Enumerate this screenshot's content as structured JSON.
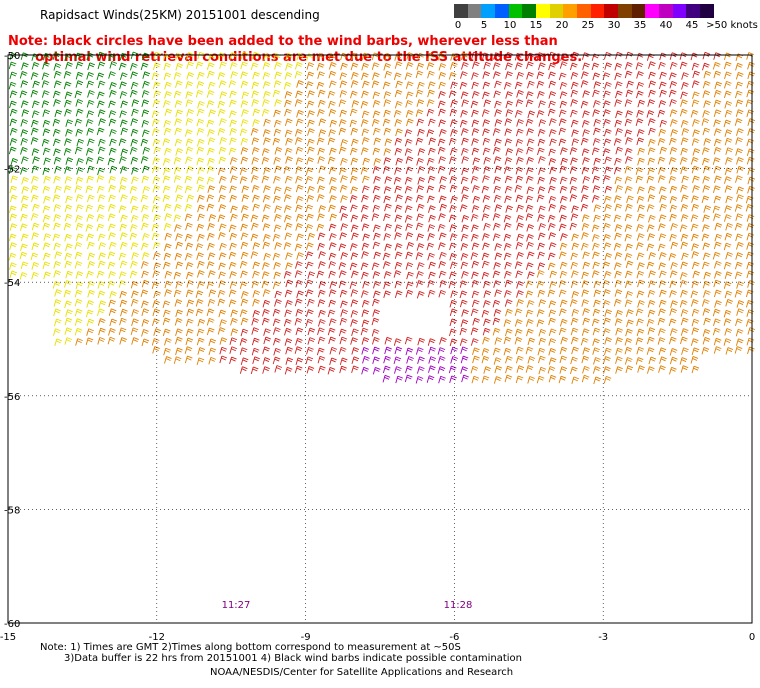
{
  "title": "Rapidsact Winds(25KM) 20151001 descending",
  "note_lines": [
    "Note: black circles have been added to the wind barbs, wherever less than",
    "      optimal wind retrieval conditions are met due to the ISS attitude changes."
  ],
  "colorbar": {
    "colors": [
      "#404040",
      "#808080",
      "#00a0ff",
      "#0060ff",
      "#00c000",
      "#008000",
      "#ffff00",
      "#e0d000",
      "#ffa000",
      "#ff6000",
      "#ff2000",
      "#c00000",
      "#804000",
      "#602000",
      "#ff00ff",
      "#c000c0",
      "#8000ff",
      "#400080",
      "#200040"
    ],
    "labels": [
      "0",
      "5",
      "10",
      "15",
      "20",
      "25",
      "30",
      "35",
      "40",
      "45",
      ">50 knots"
    ]
  },
  "axes": {
    "lat_labels": [
      "-50",
      "-52",
      "-54",
      "-56",
      "-58",
      "-60"
    ],
    "lon_labels": [
      "-15",
      "-12",
      "-9",
      "-6",
      "-3",
      "0"
    ]
  },
  "time_labels": [
    "11:27",
    "11:28"
  ],
  "footer": {
    "line1": "Note: 1) Times are GMT 2)Times along bottom correspond to measurement at ~50S",
    "line2": "3)Data buffer is 22 hrs from 20151001 4) Black wind barbs indicate possible contamination",
    "line3": "NOAA/NESDIS/Center for Satellite Applications and Research"
  },
  "colors": {
    "green": "#008000",
    "yellow": "#e8e000",
    "orange": "#e08000",
    "red": "#d02020",
    "purple": "#a000c0",
    "note_red": "#ee0000",
    "time_label": "#800080"
  }
}
